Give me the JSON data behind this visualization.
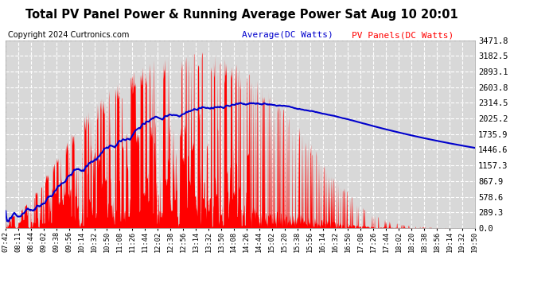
{
  "title": "Total PV Panel Power & Running Average Power Sat Aug 10 20:01",
  "copyright": "Copyright 2024 Curtronics.com",
  "legend_avg": "Average(DC Watts)",
  "legend_pv": "PV Panels(DC Watts)",
  "yticks": [
    0.0,
    289.3,
    578.6,
    867.9,
    1157.3,
    1446.6,
    1735.9,
    2025.2,
    2314.5,
    2603.8,
    2893.1,
    3182.5,
    3471.8
  ],
  "ymax": 3471.8,
  "ymin": 0.0,
  "background_color": "#ffffff",
  "plot_bg_color": "#d8d8d8",
  "grid_color": "#ffffff",
  "bar_color": "#ff0000",
  "avg_line_color": "#0000cc",
  "title_color": "#000000",
  "copyright_color": "#000000",
  "xtick_labels": [
    "07:42",
    "08:11",
    "08:44",
    "09:02",
    "09:38",
    "09:56",
    "10:14",
    "10:32",
    "10:50",
    "11:08",
    "11:26",
    "11:44",
    "12:02",
    "12:38",
    "12:56",
    "13:14",
    "13:32",
    "13:50",
    "14:08",
    "14:26",
    "14:44",
    "15:02",
    "15:20",
    "15:38",
    "15:56",
    "16:14",
    "16:32",
    "16:50",
    "17:08",
    "17:26",
    "17:44",
    "18:02",
    "18:20",
    "18:38",
    "18:56",
    "19:14",
    "19:32",
    "19:50"
  ]
}
